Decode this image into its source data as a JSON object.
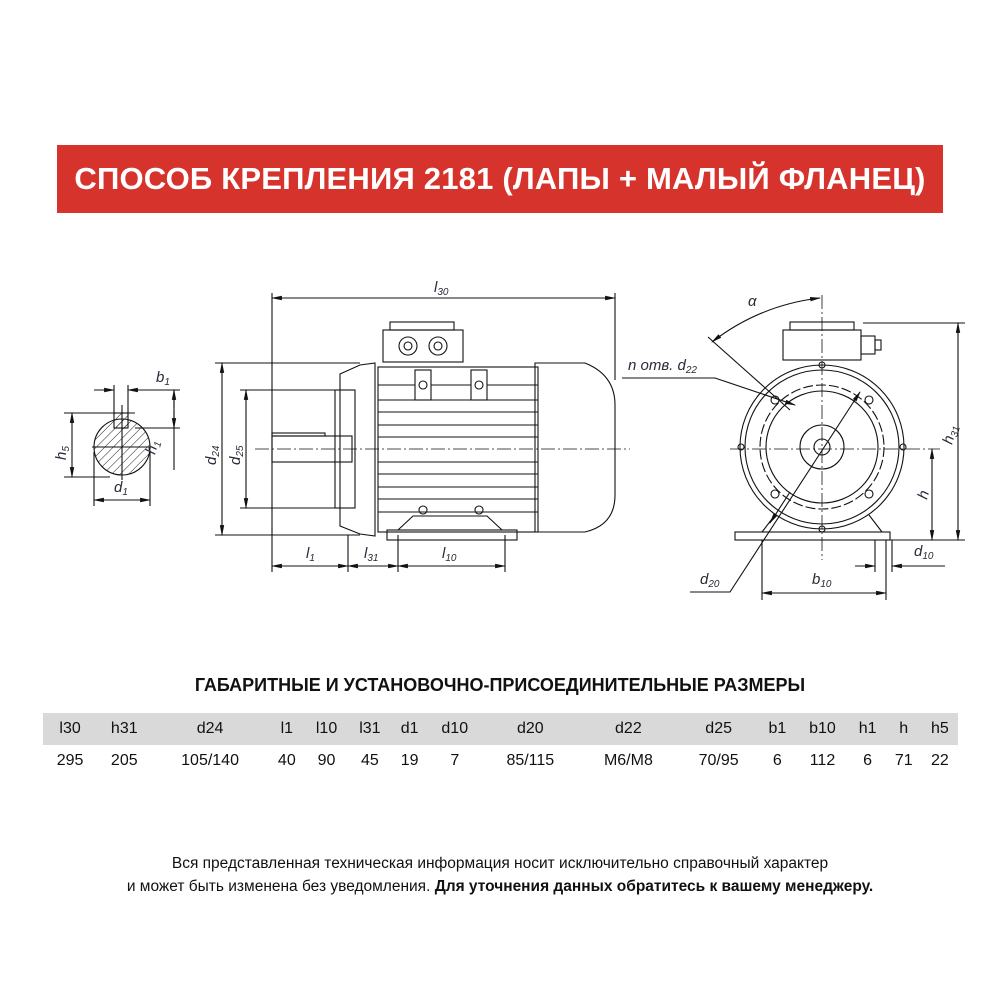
{
  "header": {
    "title": "СПОСОБ КРЕПЛЕНИЯ 2181 (ЛАПЫ + МАЛЫЙ ФЛАНЕЦ)",
    "background": "#d7332d"
  },
  "drawing": {
    "labels": {
      "l30": "l",
      "l30_sub": "30",
      "l1": "l",
      "l1_sub": "1",
      "l31": "l",
      "l31_sub": "31",
      "l10": "l",
      "l10_sub": "10",
      "d24": "d",
      "d24_sub": "24",
      "d25": "d",
      "d25_sub": "25",
      "b1": "b",
      "b1_sub": "1",
      "h5": "h",
      "h5_sub": "5",
      "h1": "h",
      "h1_sub": "1",
      "d1": "d",
      "d1_sub": "1",
      "alpha": "α",
      "holes": "n отв. d",
      "holes_sub": "22",
      "h31": "h",
      "h31_sub": "31",
      "h": "h",
      "d10": "d",
      "d10_sub": "10",
      "d20": "d",
      "d20_sub": "20",
      "b10": "b",
      "b10_sub": "10"
    }
  },
  "dimensions": {
    "title": "ГАБАРИТНЫЕ И УСТАНОВОЧНО-ПРИСОЕДИНИТЕЛЬНЫЕ РАЗМЕРЫ",
    "headers": [
      "l30",
      "h31",
      "d24",
      "l1",
      "l10",
      "l31",
      "d1",
      "d10",
      "d20",
      "d22",
      "d25",
      "b1",
      "b10",
      "h1",
      "h",
      "h5"
    ],
    "values": [
      "295",
      "205",
      "105/140",
      "40",
      "90",
      "45",
      "19",
      "7",
      "85/115",
      "М6/М8",
      "70/95",
      "6",
      "112",
      "6",
      "71",
      "22"
    ]
  },
  "footer": {
    "line1": "Вся представленная техническая информация носит исключительно справочный характер",
    "line2_normal": "и может быть изменена без уведомления. ",
    "line2_bold": "Для уточнения данных обратитесь к вашему менеджеру."
  }
}
